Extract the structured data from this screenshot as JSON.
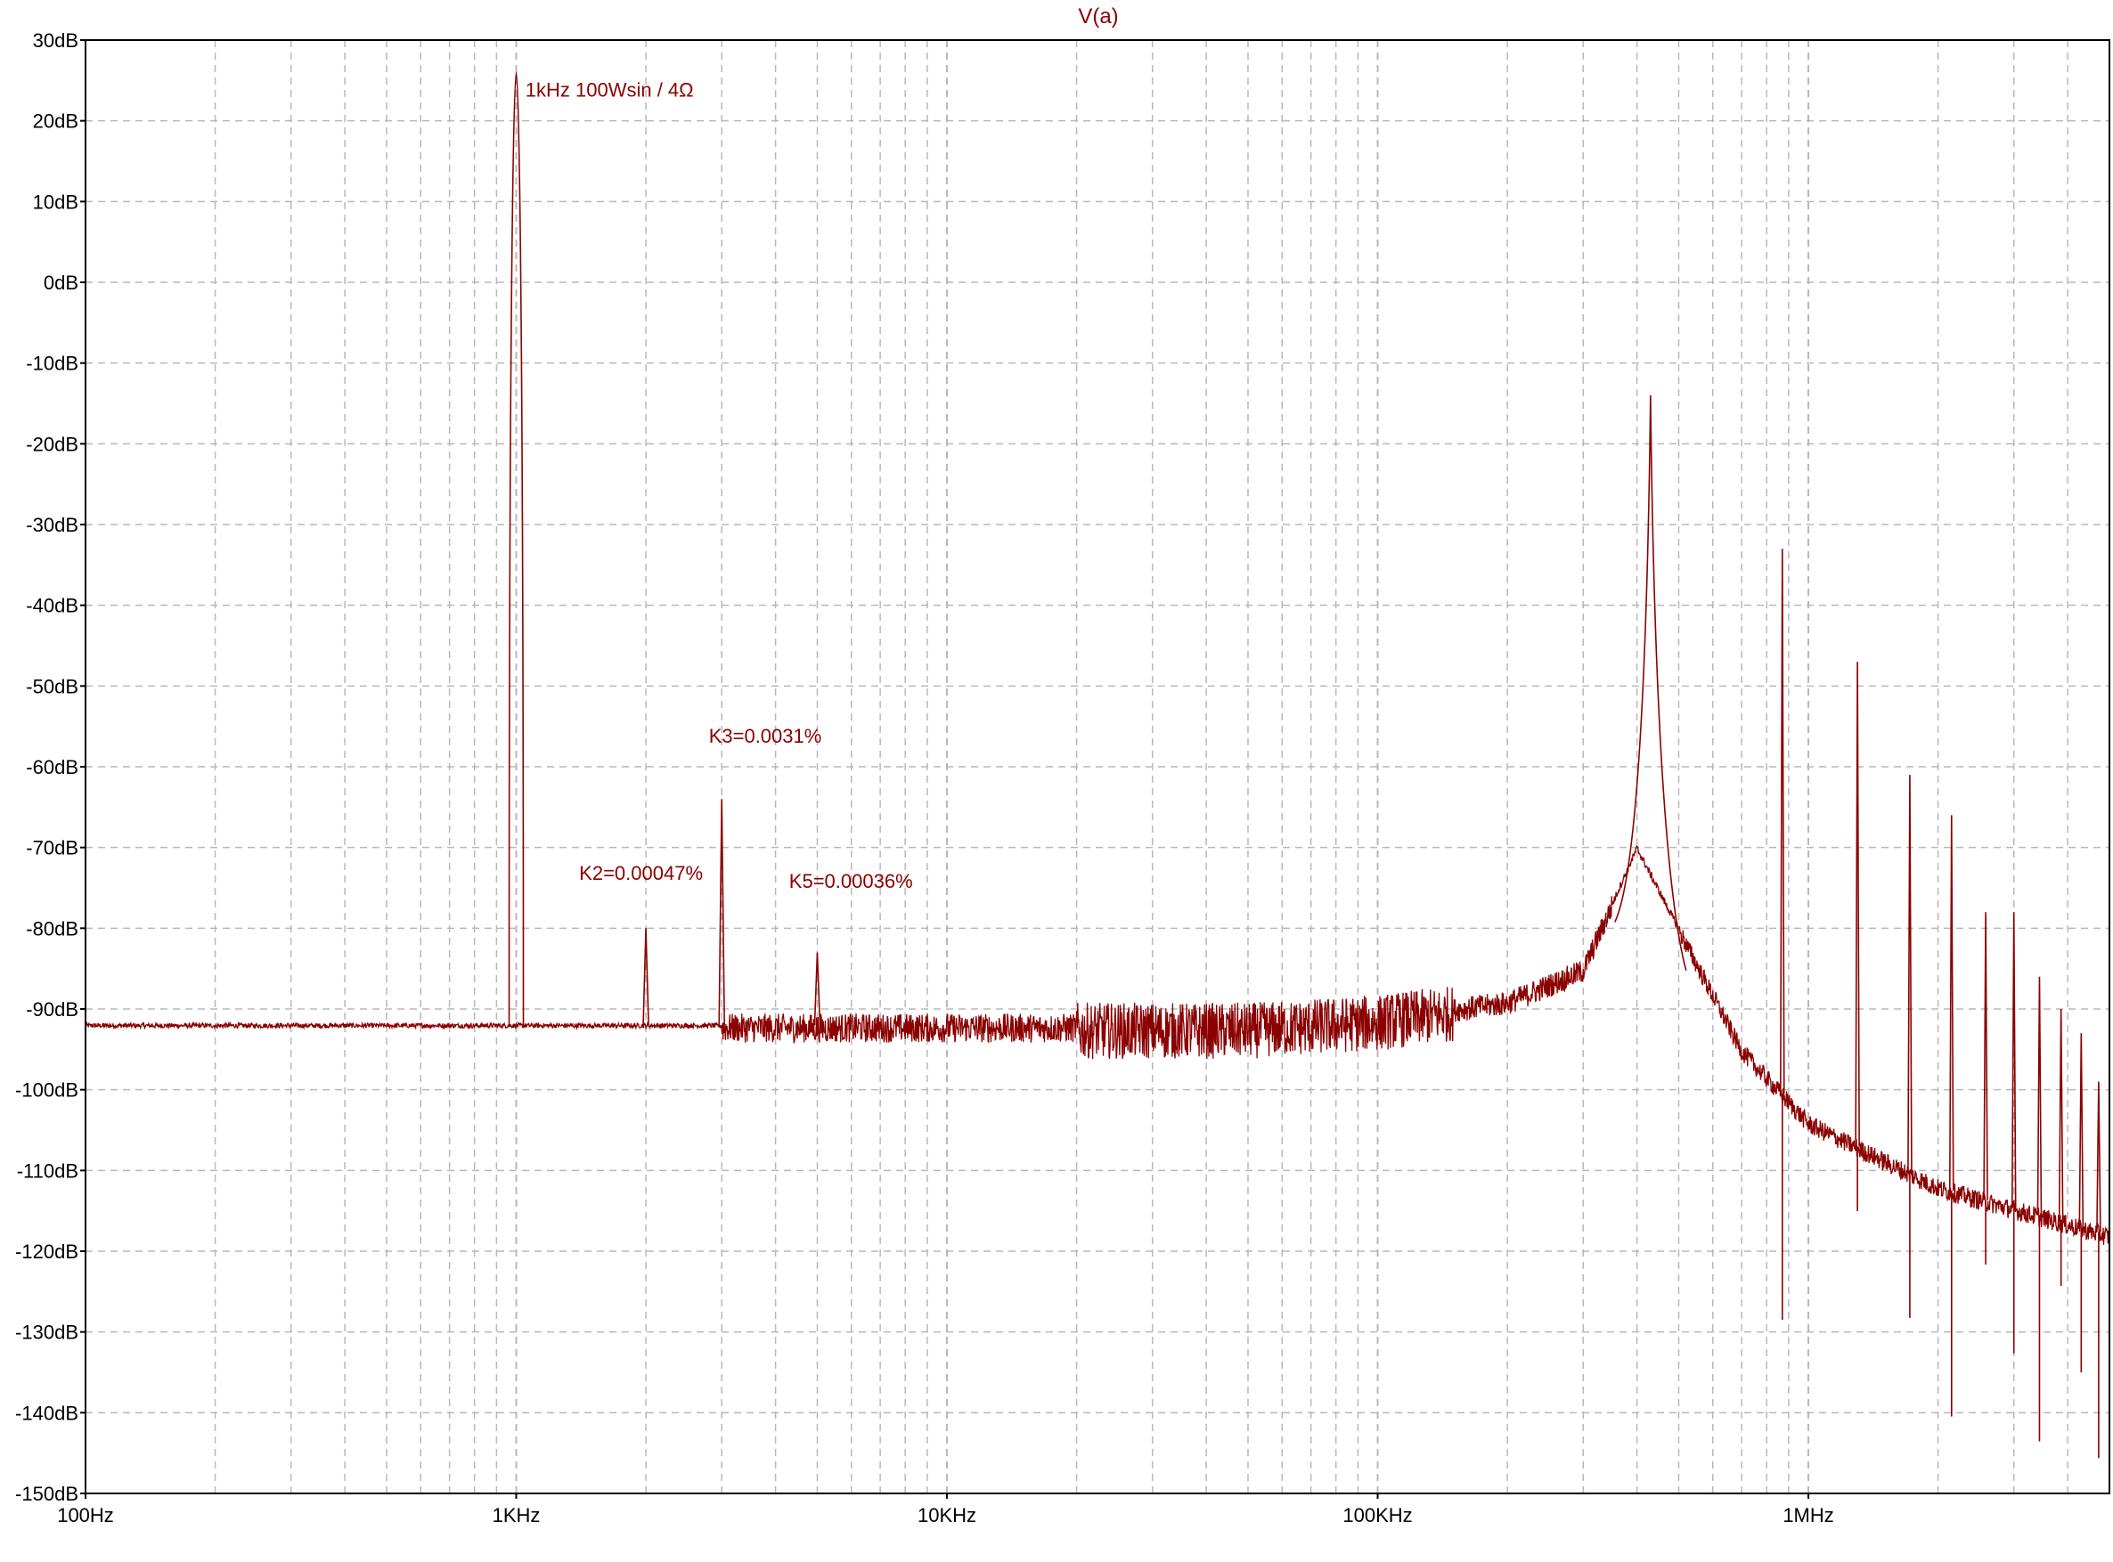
{
  "chart_data": {
    "type": "line",
    "title": "V(a)",
    "xlabel": "",
    "ylabel": "",
    "x_scale": "log",
    "x_unit": "Hz",
    "xlim": [
      100,
      5000000
    ],
    "ylim": [
      -150,
      30
    ],
    "grid": true,
    "trace_color": "#8b0000",
    "x_tick_labels": [
      {
        "value": 100,
        "label": "100Hz"
      },
      {
        "value": 1000,
        "label": "1KHz"
      },
      {
        "value": 10000,
        "label": "10KHz"
      },
      {
        "value": 100000,
        "label": "100KHz"
      },
      {
        "value": 1000000,
        "label": "1MHz"
      }
    ],
    "y_tick_labels": [
      {
        "value": 30,
        "label": "30dB"
      },
      {
        "value": 20,
        "label": "20dB"
      },
      {
        "value": 10,
        "label": "10dB"
      },
      {
        "value": 0,
        "label": "0dB"
      },
      {
        "value": -10,
        "label": "-10dB"
      },
      {
        "value": -20,
        "label": "-20dB"
      },
      {
        "value": -30,
        "label": "-30dB"
      },
      {
        "value": -40,
        "label": "-40dB"
      },
      {
        "value": -50,
        "label": "-50dB"
      },
      {
        "value": -60,
        "label": "-60dB"
      },
      {
        "value": -70,
        "label": "-70dB"
      },
      {
        "value": -80,
        "label": "-80dB"
      },
      {
        "value": -90,
        "label": "-90dB"
      },
      {
        "value": -100,
        "label": "-100dB"
      },
      {
        "value": -110,
        "label": "-110dB"
      },
      {
        "value": -120,
        "label": "-120dB"
      },
      {
        "value": -130,
        "label": "-130dB"
      },
      {
        "value": -140,
        "label": "-140dB"
      },
      {
        "value": -150,
        "label": "-150dB"
      }
    ],
    "annotations": [
      {
        "text": "1kHz  100Wsin / 4Ω",
        "x": 1050,
        "y": 23
      },
      {
        "text": "K3=0.0031%",
        "x": 2800,
        "y": -57
      },
      {
        "text": "K2=0.00047%",
        "x": 1400,
        "y": -74
      },
      {
        "text": "K5=0.00036%",
        "x": 4300,
        "y": -75
      }
    ],
    "series": [
      {
        "name": "",
        "baseline_db": -92,
        "peaks": [
          {
            "x": 1000,
            "y": 26
          },
          {
            "x": 2000,
            "y": -80
          },
          {
            "x": 3000,
            "y": -64
          },
          {
            "x": 5000,
            "y": -83
          },
          {
            "x": 430000,
            "y": -14
          },
          {
            "x": 870000,
            "y": -33
          },
          {
            "x": 1300000,
            "y": -47
          },
          {
            "x": 1720000,
            "y": -61
          },
          {
            "x": 2150000,
            "y": -66
          },
          {
            "x": 2580000,
            "y": -78
          },
          {
            "x": 3000000,
            "y": -78
          },
          {
            "x": 3440000,
            "y": -86
          },
          {
            "x": 3860000,
            "y": -90
          },
          {
            "x": 4300000,
            "y": -93
          },
          {
            "x": 4720000,
            "y": -99
          }
        ],
        "envelope": [
          {
            "x": 100,
            "y": -92
          },
          {
            "x": 1000,
            "y": -92
          },
          {
            "x": 10000,
            "y": -92
          },
          {
            "x": 50000,
            "y": -92
          },
          {
            "x": 100000,
            "y": -91
          },
          {
            "x": 200000,
            "y": -89
          },
          {
            "x": 300000,
            "y": -85
          },
          {
            "x": 400000,
            "y": -70
          },
          {
            "x": 500000,
            "y": -80
          },
          {
            "x": 700000,
            "y": -95
          },
          {
            "x": 1000000,
            "y": -104
          },
          {
            "x": 2000000,
            "y": -112
          },
          {
            "x": 5000000,
            "y": -118
          }
        ]
      }
    ]
  }
}
